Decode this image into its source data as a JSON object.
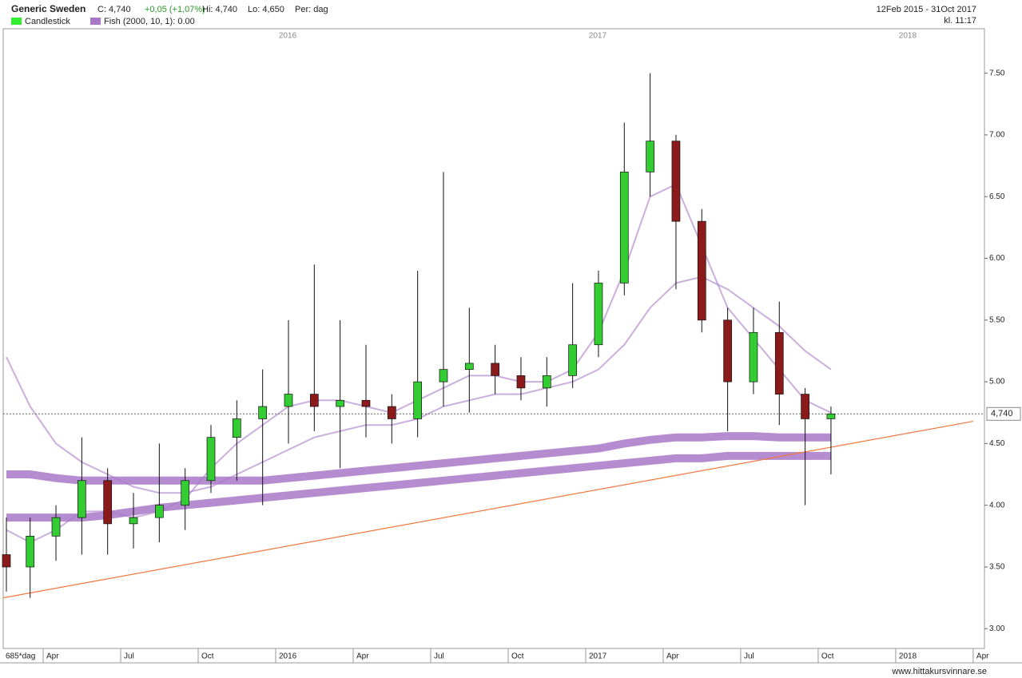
{
  "header": {
    "title": "Generic Sweden",
    "close": "C: 4,740",
    "change": "+0,05 (+1,07%)",
    "high": "Hi: 4,740",
    "low": "Lo: 4,650",
    "period": "Per: dag",
    "range": "12Feb 2015 - 31Oct 2017",
    "time": "kl. 11:17",
    "legend_candles": "Candlestick",
    "legend_fish": "Fish (2000, 10, 1): 0.00"
  },
  "footer": "www.hittakursvinnare.se",
  "chart_data": {
    "type": "candlestick",
    "x": [
      "2015-02",
      "2015-03",
      "2015-04",
      "2015-05",
      "2015-06",
      "2015-07",
      "2015-08",
      "2015-09",
      "2015-10",
      "2015-11",
      "2015-12",
      "2016-01",
      "2016-02",
      "2016-03",
      "2016-04",
      "2016-05",
      "2016-06",
      "2016-07",
      "2016-08",
      "2016-09",
      "2016-10",
      "2016-11",
      "2016-12",
      "2017-01",
      "2017-02",
      "2017-03",
      "2017-04",
      "2017-05",
      "2017-06",
      "2017-07",
      "2017-08",
      "2017-09",
      "2017-10"
    ],
    "open": [
      3.6,
      3.5,
      3.75,
      3.9,
      4.2,
      3.85,
      3.9,
      4.0,
      4.2,
      4.55,
      4.7,
      4.8,
      4.9,
      4.8,
      4.85,
      4.8,
      4.7,
      5.0,
      5.1,
      5.15,
      5.05,
      4.95,
      5.05,
      5.3,
      5.8,
      6.7,
      6.95,
      6.3,
      5.5,
      5.0,
      5.4,
      4.9,
      4.7
    ],
    "high": [
      3.9,
      3.9,
      4.0,
      4.55,
      4.3,
      4.1,
      4.5,
      4.3,
      4.65,
      4.85,
      5.1,
      5.5,
      5.95,
      5.5,
      5.3,
      4.9,
      5.9,
      6.7,
      5.6,
      5.3,
      5.2,
      5.2,
      5.8,
      5.9,
      7.1,
      7.5,
      7.0,
      6.4,
      5.6,
      5.6,
      5.65,
      4.95,
      4.8
    ],
    "low": [
      3.3,
      3.25,
      3.55,
      3.6,
      3.6,
      3.65,
      3.7,
      3.8,
      4.1,
      4.2,
      4.0,
      4.5,
      4.6,
      4.3,
      4.55,
      4.5,
      4.55,
      4.8,
      4.75,
      4.9,
      4.85,
      4.8,
      4.95,
      5.2,
      5.7,
      6.5,
      5.75,
      5.4,
      4.6,
      4.9,
      4.65,
      4.0,
      4.25
    ],
    "close": [
      3.5,
      3.75,
      3.9,
      4.2,
      3.85,
      3.9,
      4.0,
      4.2,
      4.55,
      4.7,
      4.8,
      4.9,
      4.8,
      4.85,
      4.8,
      4.7,
      5.0,
      5.1,
      5.15,
      5.05,
      4.95,
      5.05,
      5.3,
      5.8,
      6.7,
      6.95,
      6.3,
      5.5,
      5.0,
      5.4,
      4.9,
      4.7,
      4.74
    ],
    "up_color": "#33cc33",
    "down_color": "#8b1a1a",
    "fish": {
      "color": "#a878c8",
      "lines": [
        [
          3.8,
          3.7,
          3.8,
          3.95,
          3.95,
          3.9,
          3.95,
          4.05,
          4.3,
          4.5,
          4.65,
          4.8,
          4.85,
          4.85,
          4.8,
          4.75,
          4.85,
          4.95,
          5.05,
          5.05,
          5.0,
          5.0,
          5.1,
          5.4,
          5.9,
          6.5,
          6.6,
          6.1,
          5.6,
          5.35,
          5.1,
          4.85,
          4.75
        ],
        [
          5.2,
          4.8,
          4.5,
          4.35,
          4.25,
          4.15,
          4.1,
          4.1,
          4.15,
          4.25,
          4.35,
          4.45,
          4.55,
          4.6,
          4.65,
          4.65,
          4.7,
          4.8,
          4.85,
          4.9,
          4.9,
          4.95,
          5.0,
          5.1,
          5.3,
          5.6,
          5.8,
          5.85,
          5.75,
          5.6,
          5.45,
          5.25,
          5.1
        ],
        [
          4.25,
          4.25,
          4.22,
          4.2,
          4.2,
          4.2,
          4.2,
          4.2,
          4.2,
          4.2,
          4.2,
          4.22,
          4.24,
          4.26,
          4.28,
          4.3,
          4.32,
          4.34,
          4.36,
          4.38,
          4.4,
          4.42,
          4.44,
          4.46,
          4.5,
          4.53,
          4.55,
          4.55,
          4.56,
          4.56,
          4.55,
          4.55,
          4.55
        ],
        [
          3.9,
          3.9,
          3.9,
          3.9,
          3.92,
          3.95,
          3.98,
          4.0,
          4.02,
          4.04,
          4.06,
          4.08,
          4.1,
          4.12,
          4.14,
          4.16,
          4.18,
          4.2,
          4.22,
          4.24,
          4.26,
          4.28,
          4.3,
          4.32,
          4.34,
          4.36,
          4.38,
          4.38,
          4.4,
          4.4,
          4.4,
          4.4,
          4.4
        ]
      ]
    },
    "trendline": {
      "color": "#f07840",
      "x": [
        "2015-02",
        "2018-04"
      ],
      "values": [
        3.25,
        4.68
      ]
    },
    "last_price": {
      "value": 4.74,
      "label": "4,740"
    },
    "ylim": [
      2.84,
      7.86
    ],
    "yticks": [
      {
        "value": 3,
        "label": "3.00"
      },
      {
        "value": 3.5,
        "label": "3.50"
      },
      {
        "value": 4,
        "label": "4.00"
      },
      {
        "value": 4.5,
        "label": "4.50"
      },
      {
        "value": 5,
        "label": "5.00"
      },
      {
        "value": 5.5,
        "label": "5.50"
      },
      {
        "value": 6,
        "label": "6.00"
      },
      {
        "value": 6.5,
        "label": "6.50"
      },
      {
        "value": 7,
        "label": "7.00"
      },
      {
        "value": 7.5,
        "label": "7.50"
      }
    ],
    "period_label": "685*dag",
    "xticks": [
      {
        "value": "2015-04",
        "label": "Apr"
      },
      {
        "value": "2015-07",
        "label": "Jul"
      },
      {
        "value": "2015-10",
        "label": "Oct"
      },
      {
        "value": "2016-01",
        "label": "2016"
      },
      {
        "value": "2016-04",
        "label": "Apr"
      },
      {
        "value": "2016-07",
        "label": "Jul"
      },
      {
        "value": "2016-10",
        "label": "Oct"
      },
      {
        "value": "2017-01",
        "label": "2017"
      },
      {
        "value": "2017-04",
        "label": "Apr"
      },
      {
        "value": "2017-07",
        "label": "Jul"
      },
      {
        "value": "2017-10",
        "label": "Oct"
      },
      {
        "value": "2018-01",
        "label": "2018"
      },
      {
        "value": "2018-04",
        "label": "Apr"
      }
    ],
    "top_years": [
      {
        "value": "2016-01",
        "label": "2016"
      },
      {
        "value": "2017-01",
        "label": "2017"
      },
      {
        "value": "2018-01",
        "label": "2018"
      }
    ]
  }
}
